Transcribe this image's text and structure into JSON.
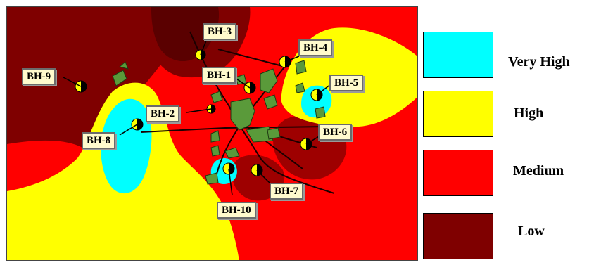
{
  "legend": {
    "items": [
      {
        "label": "Very High",
        "color": "#00ffff"
      },
      {
        "label": "High",
        "color": "#ffff00"
      },
      {
        "label": "Medium",
        "color": "#ff0000"
      },
      {
        "label": "Low",
        "color": "#7f0000"
      }
    ]
  },
  "boreholes": [
    "BH-1",
    "BH-2",
    "BH-3",
    "BH-4",
    "BH-5",
    "BH-6",
    "BH-7",
    "BH-8",
    "BH-9",
    "BH-10"
  ],
  "colors": {
    "very_high": "#00ffff",
    "high": "#ffff00",
    "medium": "#ff0000",
    "low": "#7f0000",
    "town": "#5a9a3a",
    "label_bg": "#fffacd"
  }
}
